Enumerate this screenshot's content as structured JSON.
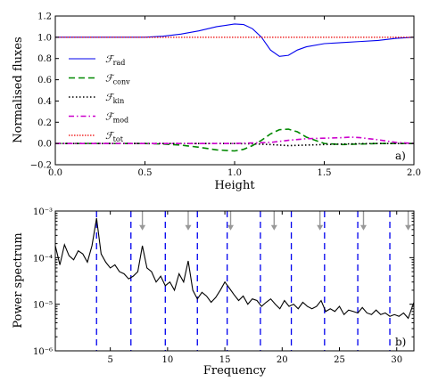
{
  "chart_data": [
    {
      "type": "line",
      "panel_label": "a)",
      "xlabel": "Height",
      "ylabel": "Normalised fluxes",
      "xlim": [
        0.0,
        2.0
      ],
      "ylim": [
        -0.2,
        1.2
      ],
      "x_ticks": [
        "0.0",
        "0.5",
        "1.0",
        "1.5",
        "2.0"
      ],
      "x_tick_values": [
        0.0,
        0.5,
        1.0,
        1.5,
        2.0
      ],
      "y_ticks": [
        "−0.2",
        "0.0",
        "0.2",
        "0.4",
        "0.6",
        "0.8",
        "1.0",
        "1.2"
      ],
      "y_tick_values": [
        -0.2,
        0.0,
        0.2,
        0.4,
        0.6,
        0.8,
        1.0,
        1.2
      ],
      "grid": false,
      "legend_position": "left",
      "series": [
        {
          "name": "rad",
          "color": "#0000ee",
          "dash": "solid",
          "x": [
            0.0,
            0.5,
            0.6,
            0.7,
            0.8,
            0.9,
            1.0,
            1.05,
            1.1,
            1.15,
            1.2,
            1.25,
            1.3,
            1.35,
            1.4,
            1.5,
            1.6,
            1.7,
            1.8,
            1.9,
            2.0
          ],
          "y": [
            1.0,
            1.0,
            1.01,
            1.03,
            1.06,
            1.1,
            1.125,
            1.12,
            1.08,
            1.0,
            0.88,
            0.82,
            0.83,
            0.88,
            0.91,
            0.94,
            0.95,
            0.96,
            0.97,
            0.99,
            1.0
          ]
        },
        {
          "name": "conv",
          "color": "#008800",
          "dash": "dashed",
          "x": [
            0.0,
            0.5,
            0.6,
            0.7,
            0.8,
            0.9,
            1.0,
            1.05,
            1.1,
            1.15,
            1.2,
            1.25,
            1.3,
            1.35,
            1.4,
            1.5,
            1.6,
            1.7,
            1.8,
            1.9,
            2.0
          ],
          "y": [
            0.0,
            0.0,
            -0.005,
            -0.015,
            -0.035,
            -0.06,
            -0.07,
            -0.055,
            -0.02,
            0.03,
            0.09,
            0.13,
            0.135,
            0.11,
            0.06,
            0.0,
            -0.01,
            -0.005,
            0.0,
            0.0,
            0.0
          ]
        },
        {
          "name": "kin",
          "color": "#000000",
          "dash": "dotted",
          "x": [
            0.0,
            0.5,
            1.0,
            1.1,
            1.2,
            1.3,
            1.4,
            1.5,
            1.6,
            1.7,
            1.8,
            2.0
          ],
          "y": [
            0.0,
            0.0,
            0.0,
            -0.003,
            -0.01,
            -0.02,
            -0.015,
            -0.01,
            -0.005,
            -0.002,
            0.0,
            0.0
          ]
        },
        {
          "name": "mod",
          "color": "#cc00cc",
          "dash": "dashdot",
          "x": [
            0.0,
            1.0,
            1.2,
            1.3,
            1.4,
            1.5,
            1.6,
            1.65,
            1.7,
            1.8,
            1.9,
            2.0
          ],
          "y": [
            0.0,
            0.0,
            0.01,
            0.03,
            0.045,
            0.05,
            0.055,
            0.06,
            0.055,
            0.035,
            0.01,
            0.0
          ]
        },
        {
          "name": "tot",
          "color": "#ee0000",
          "dash": "densedot",
          "x": [
            0.0,
            0.5,
            1.0,
            1.5,
            2.0
          ],
          "y": [
            1.0,
            1.0,
            1.0,
            1.0,
            1.0
          ]
        }
      ]
    },
    {
      "type": "line",
      "panel_label": "b)",
      "xlabel": "Frequency",
      "ylabel": "Power spectrum",
      "yscale": "log",
      "xlim": [
        0.2,
        31.5
      ],
      "ylim": [
        1e-06,
        0.001
      ],
      "x_ticks": [
        "5",
        "10",
        "15",
        "20",
        "25",
        "30"
      ],
      "x_tick_values": [
        5,
        10,
        15,
        20,
        25,
        30
      ],
      "y_ticks": [
        "10⁻³",
        "10⁻⁴",
        "10⁻⁵",
        "10⁻⁶"
      ],
      "y_tick_values": [
        0.001,
        0.0001,
        1e-05,
        1e-06
      ],
      "grid": false,
      "dashed_vertical_lines": [
        3.8,
        6.8,
        9.8,
        12.6,
        15.2,
        18.1,
        20.8,
        23.7,
        26.6,
        29.4
      ],
      "arrow_x": [
        7.8,
        11.8,
        15.5,
        19.3,
        23.3,
        27.1,
        31.0
      ],
      "arrow_y": 0.00065,
      "series": [
        {
          "name": "",
          "color": "#000000",
          "dash": "solid",
          "x": [
            0.2,
            0.6,
            1.0,
            1.4,
            1.8,
            2.2,
            2.6,
            3.0,
            3.4,
            3.8,
            4.2,
            4.6,
            5.0,
            5.4,
            5.8,
            6.2,
            6.6,
            7.0,
            7.4,
            7.8,
            8.2,
            8.6,
            9.0,
            9.4,
            9.8,
            10.2,
            10.6,
            11.0,
            11.4,
            11.8,
            12.2,
            12.6,
            13.0,
            13.4,
            13.8,
            14.2,
            14.6,
            15.0,
            15.4,
            15.8,
            16.2,
            16.6,
            17.0,
            17.4,
            17.8,
            18.2,
            18.6,
            19.0,
            19.4,
            19.8,
            20.2,
            20.6,
            21.0,
            21.4,
            21.8,
            22.2,
            22.6,
            23.0,
            23.4,
            23.8,
            24.2,
            24.6,
            25.0,
            25.4,
            25.8,
            26.2,
            26.6,
            27.0,
            27.4,
            27.8,
            28.2,
            28.6,
            29.0,
            29.4,
            29.8,
            30.2,
            30.6,
            31.0,
            31.5
          ],
          "y": [
            0.00018,
            7e-05,
            0.00019,
            0.00011,
            9e-05,
            0.00014,
            0.00012,
            8e-05,
            0.00018,
            0.0007,
            0.00012,
            8e-05,
            6e-05,
            7e-05,
            5e-05,
            4.5e-05,
            3.5e-05,
            4e-05,
            5e-05,
            0.00018,
            6e-05,
            5e-05,
            3e-05,
            4e-05,
            2.5e-05,
            3e-05,
            2e-05,
            4.5e-05,
            3e-05,
            8.5e-05,
            2e-05,
            1.3e-05,
            1.8e-05,
            1.5e-05,
            1.1e-05,
            1.4e-05,
            2e-05,
            3e-05,
            2.2e-05,
            1.6e-05,
            1.2e-05,
            1.5e-05,
            1e-05,
            1.3e-05,
            1.2e-05,
            9e-06,
            1.1e-05,
            1.3e-05,
            1e-05,
            8e-06,
            1.2e-05,
            9e-06,
            1e-05,
            8e-06,
            1.1e-05,
            9e-06,
            8e-06,
            9e-06,
            1.2e-05,
            7e-06,
            8e-06,
            7e-06,
            9e-06,
            6e-06,
            7.5e-06,
            7e-06,
            6.5e-06,
            8.5e-06,
            6.5e-06,
            6e-06,
            7.5e-06,
            6e-06,
            6.5e-06,
            5.5e-06,
            6e-06,
            5.5e-06,
            6.5e-06,
            5e-06,
            1.1e-05
          ]
        }
      ]
    }
  ]
}
